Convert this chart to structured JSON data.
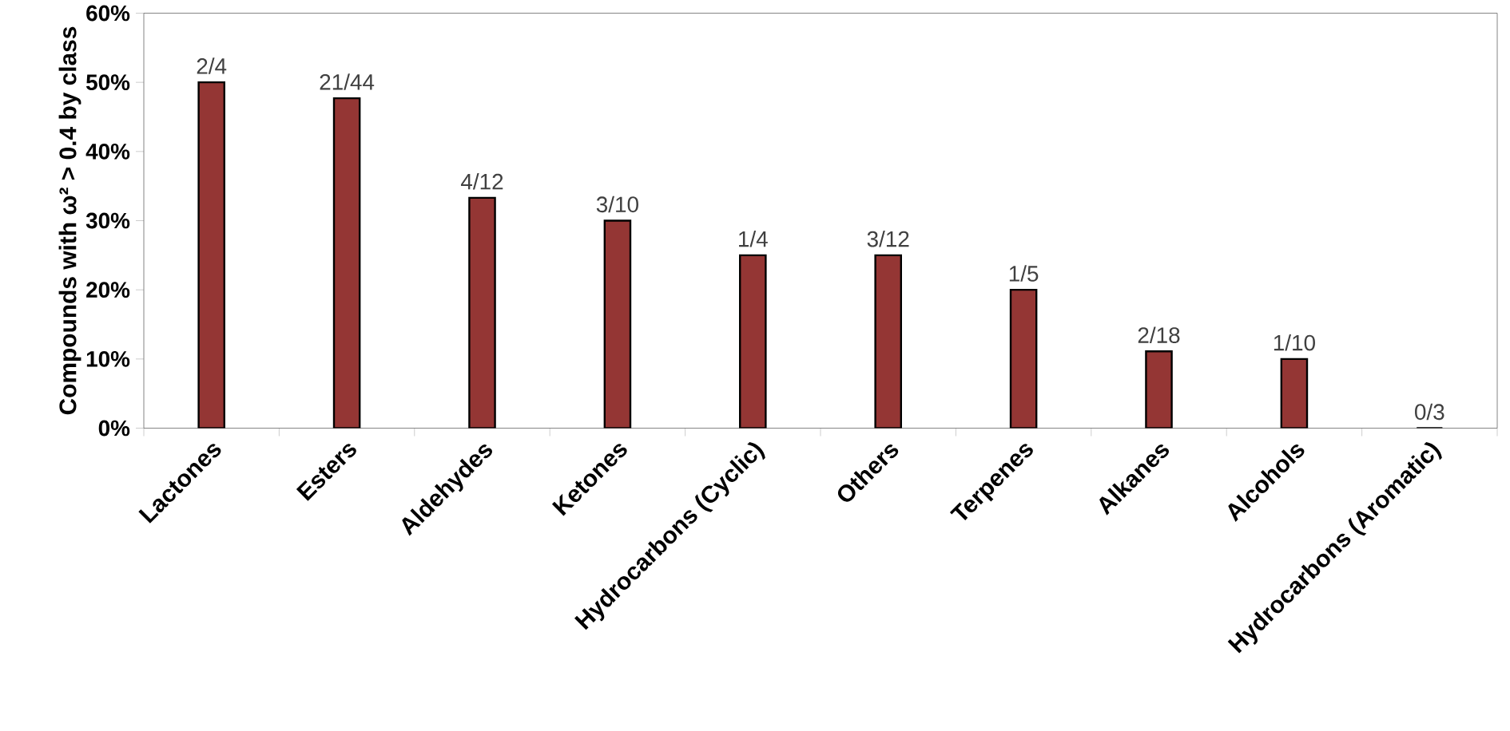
{
  "chart_data": {
    "type": "bar",
    "ylabel": "Compounds with ω² > 0.4  by class",
    "categories": [
      "Lactones",
      "Esters",
      "Aldehydes",
      "Ketones",
      "Hydrocarbons (Cyclic)",
      "Others",
      "Terpenes",
      "Alkanes",
      "Alcohols",
      "Hydrocarbons (Aromatic)"
    ],
    "values": [
      50,
      47.7,
      33.3,
      30,
      25,
      25,
      20,
      11.1,
      10,
      0
    ],
    "annotations": [
      {
        "text": "2/4",
        "x": "Lactones",
        "y": 50
      },
      {
        "text": "21/44",
        "x": "Esters",
        "y": 47.7
      },
      {
        "text": "4/12",
        "x": "Aldehydes",
        "y": 33.3
      },
      {
        "text": "3/10",
        "x": "Ketones",
        "y": 30
      },
      {
        "text": "1/4",
        "x": "Hydrocarbons (Cyclic)",
        "y": 25
      },
      {
        "text": "3/12",
        "x": "Others",
        "y": 25
      },
      {
        "text": "1/5",
        "x": "Terpenes",
        "y": 20
      },
      {
        "text": "2/18",
        "x": "Alkanes",
        "y": 11.1
      },
      {
        "text": "1/10",
        "x": "Alcohols",
        "y": 10
      },
      {
        "text": "0/3",
        "x": "Hydrocarbons (Aromatic)",
        "y": 0
      }
    ],
    "color": "#943634",
    "ylim": [
      0,
      60
    ],
    "yticks": [
      {
        "value": 0,
        "label": "0%"
      },
      {
        "value": 10,
        "label": "10%"
      },
      {
        "value": 20,
        "label": "20%"
      },
      {
        "value": 30,
        "label": "30%"
      },
      {
        "value": 40,
        "label": "40%"
      },
      {
        "value": 50,
        "label": "50%"
      },
      {
        "value": 60,
        "label": "60%"
      }
    ],
    "grid": false
  }
}
